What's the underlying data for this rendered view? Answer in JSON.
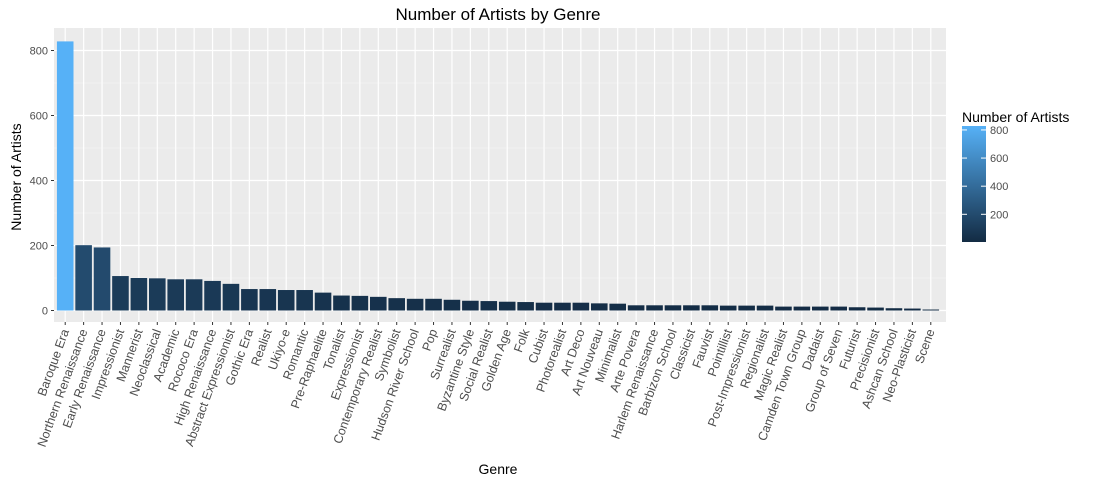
{
  "chart_data": {
    "type": "bar",
    "title": "Number of Artists by Genre",
    "xlabel": "Genre",
    "ylabel": "Number of Artists",
    "ylim": [
      0,
      850
    ],
    "yticks": [
      "0",
      "200",
      "400",
      "600",
      "800"
    ],
    "grid": true,
    "legend": {
      "title": "Number of Artists",
      "placement": "right",
      "labels": [
        "200",
        "400",
        "600",
        "800"
      ],
      "color_low": "#132B43",
      "color_high": "#56B1F7"
    },
    "categories": [
      "Baroque Era",
      "Northern Renaissance",
      "Early Renaissance",
      "Impressionist",
      "Mannerist",
      "Neoclassical",
      "Academic",
      "Rococo Era",
      "High Renaissance",
      "Abstract Expressionist",
      "Gothic Era",
      "Realist",
      "Ukiyo-e",
      "Romantic",
      "Pre-Raphaelite",
      "Tonalist",
      "Expressionist",
      "Contemporary Realist",
      "Symbolist",
      "Hudson River School",
      "Pop",
      "Surrealist",
      "Byzantine Style",
      "Social Realist",
      "Golden Age",
      "Folk",
      "Cubist",
      "Photorealist",
      "Art Deco",
      "Art Nouveau",
      "Minimalist",
      "Arte Povera",
      "Harlem Renaissance",
      "Barbizon School",
      "Classicist",
      "Fauvist",
      "Pointillist",
      "Post-Impressionist",
      "Regionalist",
      "Magic Realist",
      "Camden Town Group",
      "Dadaist",
      "Group of Seven",
      "Futurist",
      "Precisionist",
      "Ashcan School",
      "Neo-Plasticist",
      "Scene"
    ],
    "values": [
      828,
      201,
      194,
      106,
      100,
      99,
      96,
      96,
      91,
      82,
      66,
      66,
      63,
      63,
      55,
      46,
      45,
      42,
      38,
      36,
      36,
      33,
      30,
      29,
      27,
      26,
      24,
      24,
      24,
      22,
      21,
      16,
      16,
      16,
      16,
      16,
      15,
      15,
      15,
      12,
      12,
      12,
      12,
      10,
      9,
      7,
      6,
      3
    ]
  }
}
